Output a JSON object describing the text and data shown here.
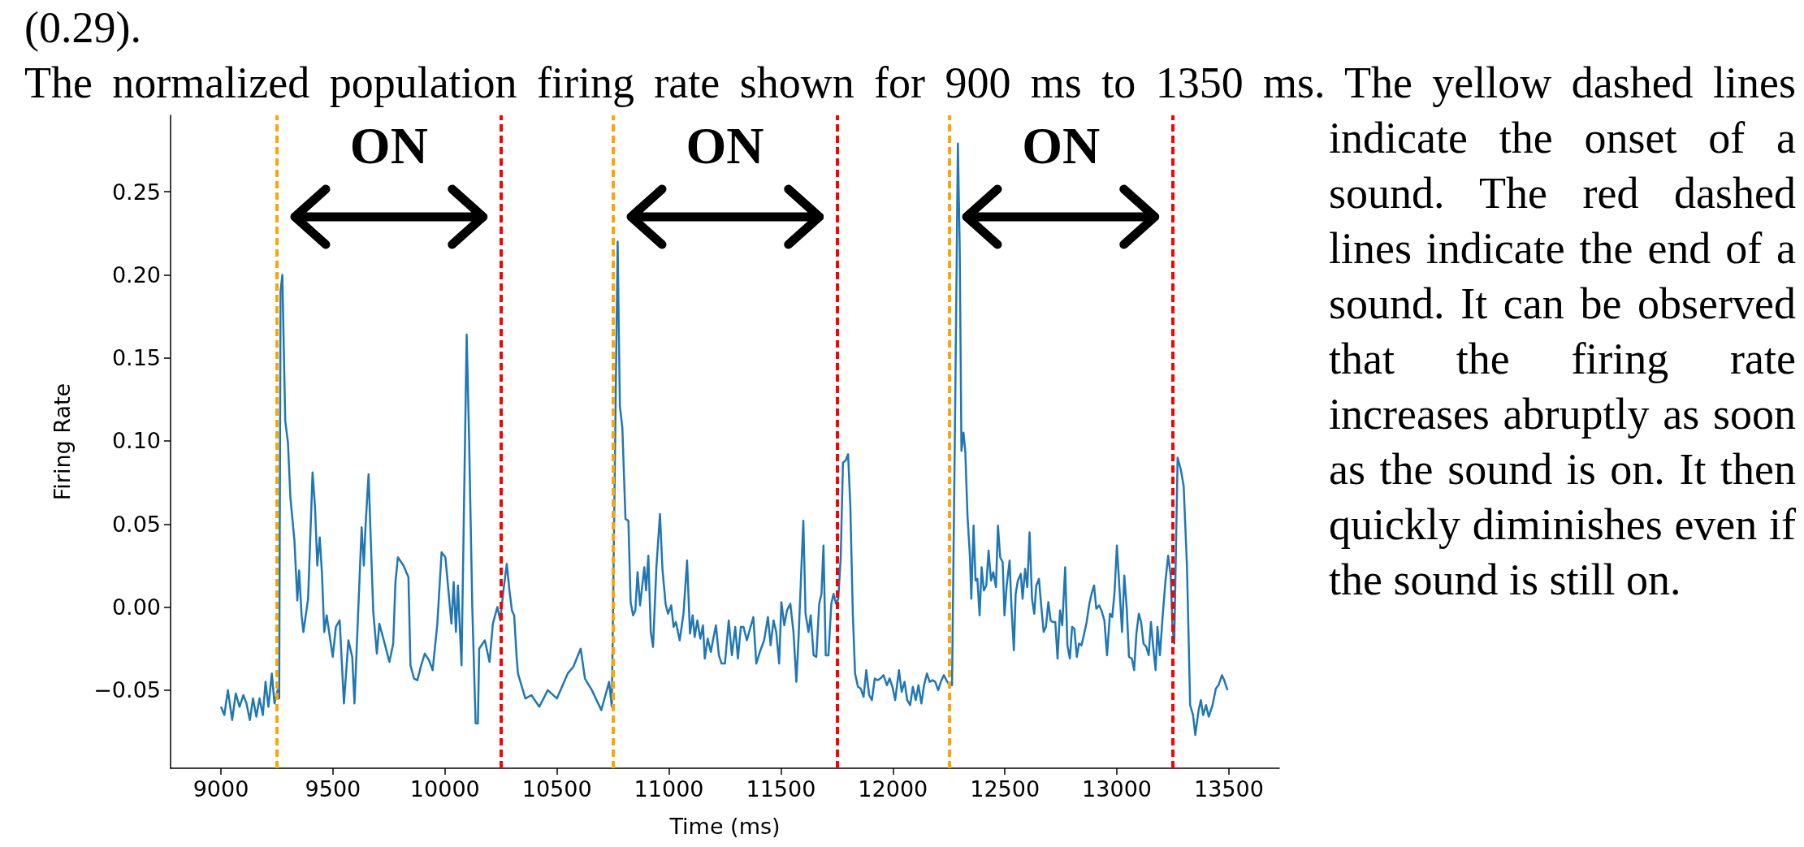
{
  "chart_data": {
    "type": "line",
    "xlabel": "Time (ms)",
    "ylabel": "Firing Rate",
    "xlim": [
      8775,
      13725
    ],
    "ylim": [
      -0.097,
      0.296
    ],
    "xticks": [
      9000,
      9500,
      10000,
      10500,
      11000,
      11500,
      12000,
      12500,
      13000,
      13500
    ],
    "yticks": [
      {
        "value": -0.05,
        "label": "−0.05"
      },
      {
        "value": 0,
        "label": "0.00"
      },
      0.05,
      {
        "value": 0.1,
        "label": "0.10"
      },
      0.15,
      {
        "value": 0.2,
        "label": "0.20"
      },
      0.25
    ],
    "grid": false,
    "series": [
      {
        "color": "#1f77b4",
        "x": [
          9000,
          9015,
          9031,
          9050,
          9066,
          9083,
          9100,
          9114,
          9129,
          9143,
          9158,
          9172,
          9187,
          9199,
          9212,
          9227,
          9239,
          9253,
          9260,
          9266,
          9274,
          9287,
          9299,
          9310,
          9328,
          9341,
          9349,
          9360,
          9368,
          9389,
          9409,
          9420,
          9430,
          9441,
          9451,
          9461,
          9472,
          9499,
          9513,
          9530,
          9549,
          9569,
          9586,
          9596,
          9628,
          9638,
          9646,
          9659,
          9669,
          9680,
          9696,
          9707,
          9731,
          9752,
          9769,
          9779,
          9790,
          9815,
          9837,
          9846,
          9862,
          9877,
          9894,
          9910,
          9929,
          9945,
          9966,
          9985,
          10002,
          10029,
          10039,
          10049,
          10058,
          10074,
          10097,
          10108,
          10122,
          10137,
          10147,
          10153,
          10178,
          10199,
          10214,
          10234,
          10247,
          10261,
          10276,
          10288,
          10299,
          10309,
          10320,
          10326,
          10359,
          10386,
          10421,
          10459,
          10500,
          10548,
          10573,
          10606,
          10625,
          10656,
          10698,
          10733,
          10745,
          10771,
          10781,
          10792,
          10806,
          10819,
          10829,
          10840,
          10850,
          10860,
          10871,
          10881,
          10890,
          10898,
          10908,
          10919,
          10929,
          10944,
          10960,
          10971,
          10985,
          10996,
          11010,
          11021,
          11031,
          11048,
          11065,
          11081,
          11094,
          11106,
          11115,
          11127,
          11140,
          11152,
          11160,
          11173,
          11187,
          11198,
          11210,
          11223,
          11235,
          11250,
          11267,
          11281,
          11296,
          11308,
          11321,
          11333,
          11348,
          11362,
          11377,
          11390,
          11406,
          11425,
          11442,
          11454,
          11467,
          11479,
          11492,
          11502,
          11515,
          11527,
          11542,
          11556,
          11569,
          11579,
          11590,
          11600,
          11610,
          11623,
          11633,
          11646,
          11658,
          11671,
          11681,
          11690,
          11700,
          11712,
          11725,
          11735,
          11746,
          11756,
          11767,
          11777,
          11788,
          11800,
          11810,
          11821,
          11831,
          11844,
          11856,
          11869,
          11881,
          11894,
          11906,
          11919,
          11931,
          11944,
          11958,
          11973,
          11985,
          11998,
          12010,
          12027,
          12039,
          12052,
          12064,
          12077,
          12089,
          12102,
          12114,
          12127,
          12139,
          12152,
          12164,
          12177,
          12189,
          12202,
          12214,
          12227,
          12239,
          12252,
          12264,
          12277,
          12290,
          12298,
          12306,
          12315,
          12323,
          12333,
          12344,
          12350,
          12360,
          12369,
          12377,
          12387,
          12396,
          12406,
          12417,
          12427,
          12438,
          12448,
          12460,
          12469,
          12479,
          12490,
          12498,
          12508,
          12521,
          12529,
          12540,
          12548,
          12558,
          12571,
          12579,
          12590,
          12600,
          12610,
          12621,
          12631,
          12640,
          12652,
          12662,
          12673,
          12683,
          12694,
          12704,
          12714,
          12725,
          12735,
          12746,
          12756,
          12769,
          12779,
          12790,
          12800,
          12810,
          12821,
          12831,
          12842,
          12854,
          12865,
          12877,
          12887,
          12898,
          12908,
          12921,
          12931,
          12944,
          12956,
          12969,
          12979,
          12989,
          13000,
          13012,
          13023,
          13033,
          13044,
          13054,
          13067,
          13077,
          13087,
          13098,
          13108,
          13119,
          13131,
          13142,
          13152,
          13162,
          13173,
          13181,
          13192,
          13204,
          13217,
          13229,
          13240,
          13248,
          13256,
          13271,
          13285,
          13298,
          13313,
          13327,
          13340,
          13350,
          13365,
          13375,
          13385,
          13398,
          13410,
          13427,
          13442,
          13454,
          13469,
          13479,
          13494
        ],
        "values": [
          -0.06,
          -0.065,
          -0.05,
          -0.068,
          -0.052,
          -0.06,
          -0.053,
          -0.058,
          -0.068,
          -0.055,
          -0.066,
          -0.055,
          -0.065,
          -0.045,
          -0.06,
          -0.04,
          -0.058,
          -0.05,
          -0.055,
          0.19,
          0.2,
          0.112,
          0.099,
          0.066,
          0.04,
          0.004,
          0.022,
          -0.005,
          -0.015,
          0.005,
          0.081,
          0.06,
          0.025,
          0.042,
          0.02,
          -0.015,
          -0.005,
          -0.03,
          -0.012,
          -0.008,
          -0.058,
          -0.02,
          -0.03,
          -0.058,
          0.048,
          0.025,
          0.05,
          0.08,
          0.04,
          -0.003,
          -0.028,
          -0.01,
          -0.022,
          -0.033,
          -0.022,
          0.015,
          0.03,
          0.025,
          0.018,
          -0.035,
          -0.043,
          -0.044,
          -0.035,
          -0.028,
          -0.032,
          -0.038,
          -0.01,
          0.033,
          0.03,
          -0.01,
          0.015,
          -0.015,
          0.013,
          -0.035,
          0.164,
          0.1,
          0.0,
          -0.07,
          -0.07,
          -0.025,
          -0.02,
          -0.033,
          -0.01,
          0.0,
          -0.008,
          0.01,
          0.026,
          0.01,
          -0.002,
          -0.005,
          -0.03,
          -0.04,
          -0.055,
          -0.053,
          -0.06,
          -0.05,
          -0.055,
          -0.04,
          -0.036,
          -0.025,
          -0.043,
          -0.05,
          -0.062,
          -0.045,
          -0.06,
          0.22,
          0.121,
          0.108,
          0.053,
          0.052,
          0.003,
          -0.005,
          -0.002,
          0.021,
          0.001,
          0.013,
          0.024,
          0.01,
          0.031,
          -0.015,
          -0.024,
          0.024,
          0.056,
          0.023,
          0.002,
          -0.004,
          0.001,
          -0.012,
          -0.009,
          -0.02,
          -0.004,
          0.028,
          -0.016,
          -0.005,
          -0.018,
          -0.008,
          -0.019,
          -0.011,
          -0.031,
          -0.019,
          -0.027,
          -0.019,
          -0.011,
          -0.029,
          -0.034,
          -0.034,
          -0.008,
          -0.029,
          -0.012,
          -0.031,
          -0.012,
          -0.012,
          -0.02,
          -0.013,
          -0.006,
          -0.034,
          -0.027,
          -0.02,
          -0.006,
          -0.023,
          -0.008,
          -0.015,
          -0.034,
          0.003,
          -0.011,
          -0.002,
          0.002,
          -0.015,
          -0.045,
          -0.018,
          0.019,
          0.052,
          -0.004,
          -0.015,
          -0.005,
          -0.029,
          -0.03,
          0.002,
          0.008,
          0.037,
          -0.029,
          -0.029,
          0.002,
          0.008,
          0.002,
          0.005,
          0.03,
          0.087,
          0.088,
          0.092,
          0.06,
          -0.004,
          -0.04,
          -0.048,
          -0.049,
          -0.054,
          -0.038,
          -0.053,
          -0.056,
          -0.043,
          -0.044,
          -0.043,
          -0.041,
          -0.047,
          -0.043,
          -0.048,
          -0.056,
          -0.038,
          -0.051,
          -0.045,
          -0.056,
          -0.059,
          -0.048,
          -0.056,
          -0.047,
          -0.058,
          -0.047,
          -0.04,
          -0.045,
          -0.044,
          -0.045,
          -0.05,
          -0.045,
          -0.041,
          -0.044,
          -0.047,
          -0.047,
          0.108,
          0.279,
          0.219,
          0.094,
          0.105,
          0.094,
          0.055,
          0.03,
          0.005,
          0.049,
          0.016,
          0.017,
          -0.005,
          0.024,
          0.01,
          0.013,
          0.034,
          0.016,
          0.021,
          0.012,
          0.049,
          0.03,
          0.027,
          -0.005,
          0.013,
          0.028,
          0.001,
          -0.026,
          0.008,
          0.016,
          0.02,
          0.005,
          0.023,
          0.012,
          0.045,
          0.005,
          -0.004,
          0.013,
          0.017,
          0.001,
          -0.015,
          -0.012,
          0.003,
          -0.008,
          -0.009,
          -0.009,
          -0.031,
          -0.002,
          -0.011,
          0.024,
          -0.023,
          -0.031,
          -0.012,
          -0.013,
          -0.03,
          -0.022,
          -0.023,
          -0.016,
          -0.009,
          0.002,
          0.008,
          0.013,
          -0.001,
          0.001,
          -0.002,
          -0.008,
          -0.029,
          -0.004,
          -0.006,
          0.008,
          0.037,
          0.01,
          -0.015,
          0.019,
          -0.001,
          -0.03,
          -0.031,
          -0.038,
          -0.016,
          -0.004,
          -0.009,
          -0.022,
          -0.024,
          -0.029,
          -0.009,
          -0.024,
          -0.038,
          -0.012,
          -0.029,
          -0.006,
          0.016,
          0.031,
          0.019,
          -0.012,
          -0.022,
          0.09,
          0.083,
          0.073,
          0.024,
          -0.059,
          -0.065,
          -0.077,
          -0.062,
          -0.056,
          -0.065,
          -0.059,
          -0.066,
          -0.059,
          -0.049,
          -0.047,
          -0.041,
          -0.044,
          -0.05
        ]
      }
    ],
    "ref_lines": [
      {
        "axis": "x",
        "value": 9250,
        "color": "#ffa500",
        "line_style": "dashed"
      },
      {
        "axis": "x",
        "value": 10250,
        "color": "#ff0000",
        "line_style": "dashed"
      },
      {
        "axis": "x",
        "value": 10750,
        "color": "#ffa500",
        "line_style": "dashed"
      },
      {
        "axis": "x",
        "value": 11750,
        "color": "#ff0000",
        "line_style": "dashed"
      },
      {
        "axis": "x",
        "value": 12250,
        "color": "#ffa500",
        "line_style": "dashed"
      },
      {
        "axis": "x",
        "value": 13250,
        "color": "#ff0000",
        "line_style": "dashed"
      }
    ],
    "annotations": [
      "(0.29).",
      "The normalized population firing rate shown for 900 ms to 1350 ms. The yellow dashed lines indicate the onset of a sound. The red dashed lines indicate the end of a sound. It can be observed that the firing rate increases abruptly as soon as the sound is on.  It then quickly diminishes even if the sound is still on.",
      "ON",
      "ON",
      "ON"
    ]
  }
}
